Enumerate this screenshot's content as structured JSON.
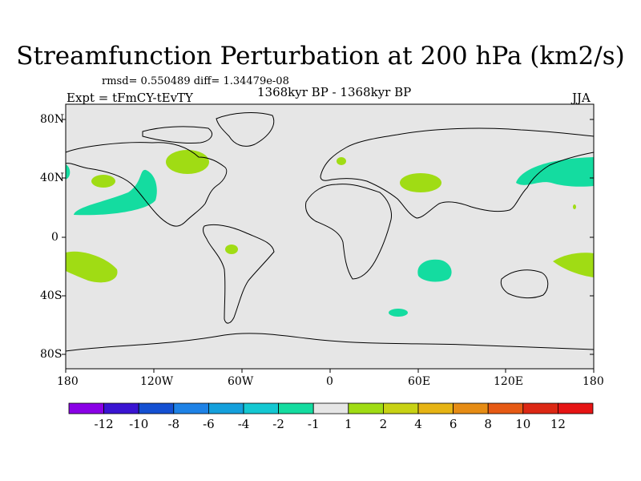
{
  "title": "Streamfunction Perturbation at 200 hPa (km2/s)",
  "stats": "rmsd= 0.550489 diff= 1.34479e-08",
  "experiment": "Expt = tFmCY-tEvTY",
  "period": "1368kyr BP - 1368kyr BP",
  "season": "JJA",
  "lat_labels": [
    "80N",
    "40N",
    "0",
    "40S",
    "80S"
  ],
  "lon_labels": [
    "180",
    "120W",
    "60W",
    "0",
    "60E",
    "120E",
    "180"
  ],
  "colorbar": {
    "labels": [
      "-12",
      "-10",
      "-8",
      "-6",
      "-4",
      "-2",
      "-1",
      "1",
      "2",
      "4",
      "6",
      "8",
      "10",
      "12"
    ],
    "colors": [
      "#8a00e6",
      "#3a14d2",
      "#1450d2",
      "#1e82e6",
      "#14a0dc",
      "#14c8d2",
      "#14dca0",
      "#e6e6e6",
      "#a0dc14",
      "#c8d214",
      "#e6b414",
      "#e68c14",
      "#e65a14",
      "#dc2814",
      "#e61414"
    ]
  },
  "colors": {
    "land_bg": "#e6e6e6",
    "positive": "#a0dc14",
    "negative": "#14dca0"
  }
}
